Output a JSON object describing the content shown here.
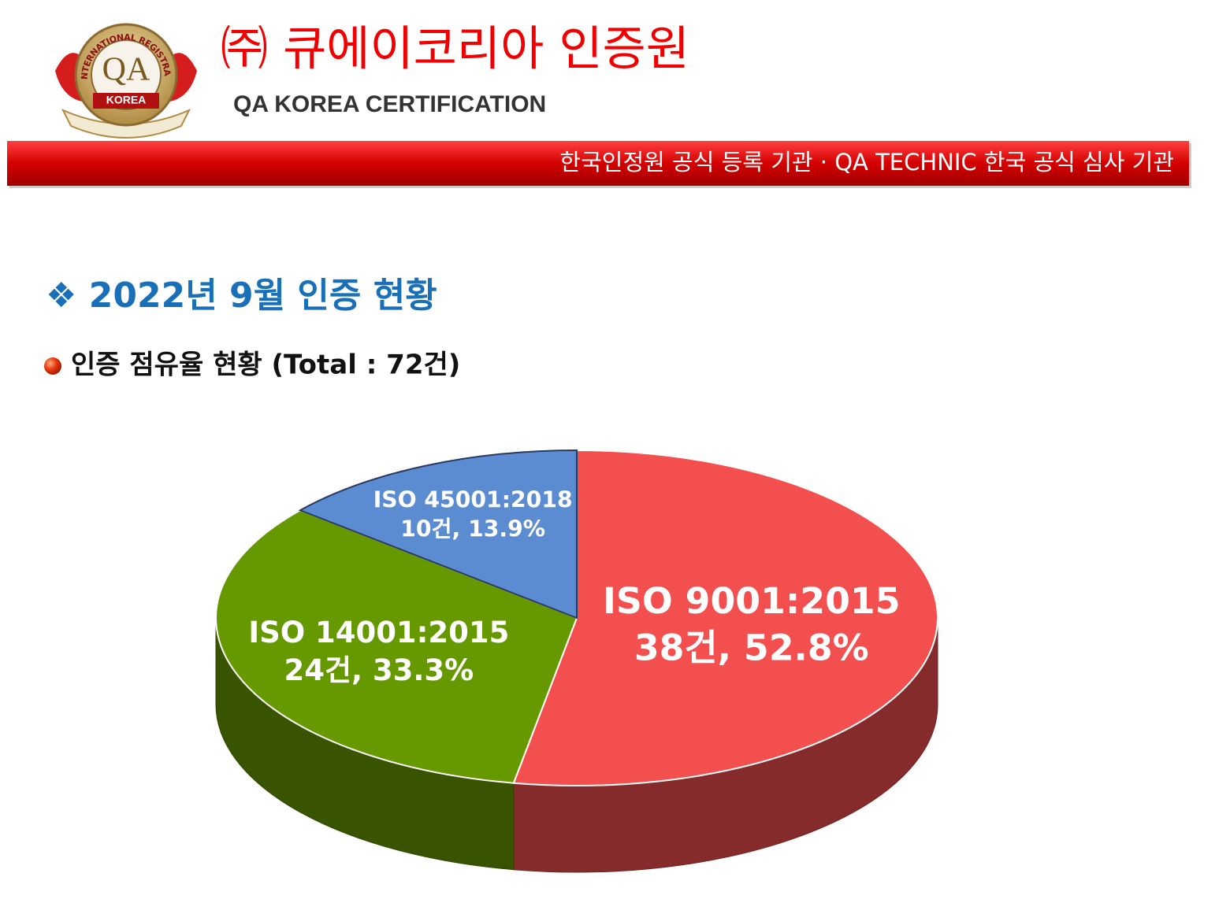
{
  "logo": {
    "ring_text": "INTERNATIONAL REGISTRAR",
    "mark": "QA",
    "banner": "KOREA"
  },
  "header": {
    "title": "㈜ 큐에이코리아 인증원",
    "subtitle": "QA KOREA CERTIFICATION",
    "banner": "한국인정원 공식 등록 기관  ·  QA TECHNIC 한국 공식 심사 기관"
  },
  "section_title": "❖ 2022년 9월 인증 현황",
  "chart_data": {
    "type": "pie",
    "title": "인증 점유율 현황 (Total : 72건)",
    "categories": [
      "ISO 9001:2015",
      "ISO 14001:2015",
      "ISO 45001:2018"
    ],
    "values": [
      52.8,
      33.3,
      13.9
    ],
    "value_labels": [
      "38건, 52.8%",
      "24건, 33.3%",
      "10건, 13.9%"
    ],
    "colors": [
      "#f44f4f",
      "#669900",
      "#5b8bd0"
    ]
  }
}
